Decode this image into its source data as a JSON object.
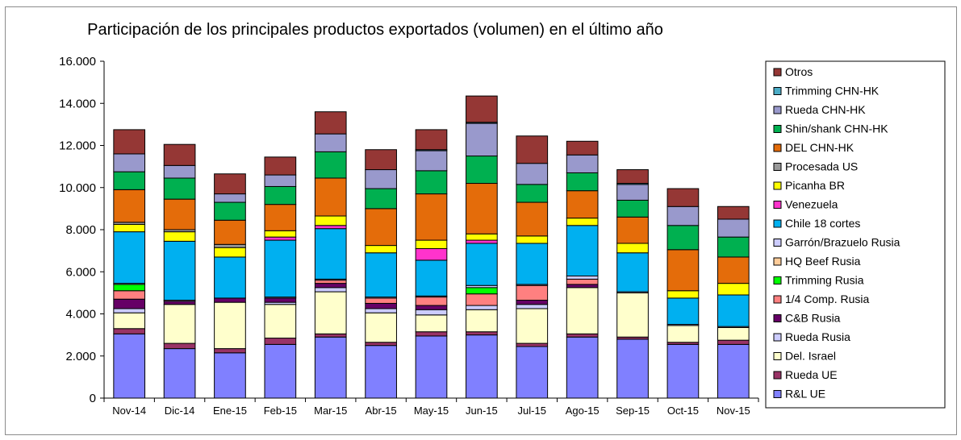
{
  "chart_data": {
    "type": "bar",
    "stacked": true,
    "title": "Participación de los principales productos exportados (volumen) en el último año",
    "xlabel": "",
    "ylabel": "",
    "ylim": [
      0,
      16000
    ],
    "yticks": [
      "0",
      "2.000",
      "4.000",
      "6.000",
      "8.000",
      "10.000",
      "12.000",
      "14.000",
      "16.000"
    ],
    "ytick_values": [
      0,
      2000,
      4000,
      6000,
      8000,
      10000,
      12000,
      14000,
      16000
    ],
    "grid": false,
    "legend_position": "right",
    "categories": [
      "Nov-14",
      "Dic-14",
      "Ene-15",
      "Feb-15",
      "Mar-15",
      "Abr-15",
      "May-15",
      "Jun-15",
      "Jul-15",
      "Ago-15",
      "Sep-15",
      "Oct-15",
      "Nov-15"
    ],
    "series": [
      {
        "name": "R&L UE",
        "color": "#8080ff",
        "values": [
          3050,
          2350,
          2150,
          2550,
          2900,
          2500,
          2950,
          3000,
          2450,
          2900,
          2800,
          2550,
          2550
        ]
      },
      {
        "name": "Rueda UE",
        "color": "#993366",
        "values": [
          250,
          250,
          200,
          300,
          150,
          150,
          200,
          150,
          150,
          150,
          100,
          100,
          200
        ]
      },
      {
        "name": "Del. Israel",
        "color": "#ffffcc",
        "values": [
          750,
          1850,
          2200,
          1600,
          2000,
          1400,
          800,
          1050,
          1650,
          2200,
          2100,
          800,
          600
        ]
      },
      {
        "name": "Rueda Rusia",
        "color": "#ccccff",
        "values": [
          200,
          0,
          0,
          100,
          200,
          200,
          250,
          200,
          200,
          0,
          0,
          0,
          0
        ]
      },
      {
        "name": "C&B Rusia",
        "color": "#660066",
        "values": [
          450,
          150,
          200,
          200,
          200,
          250,
          200,
          0,
          200,
          150,
          0,
          0,
          0
        ]
      },
      {
        "name": "1/4 Comp. Rusia",
        "color": "#ff8080",
        "values": [
          400,
          0,
          0,
          0,
          150,
          250,
          400,
          550,
          700,
          250,
          0,
          0,
          0
        ]
      },
      {
        "name": "Trimming Rusia",
        "color": "#00ff00",
        "values": [
          300,
          0,
          0,
          0,
          0,
          0,
          0,
          300,
          0,
          0,
          0,
          0,
          0
        ]
      },
      {
        "name": "HQ Beef Rusia",
        "color": "#ffcc99",
        "values": [
          0,
          0,
          0,
          0,
          0,
          0,
          0,
          0,
          0,
          0,
          0,
          0,
          0
        ]
      },
      {
        "name": "Garrón/Brazuelo Rusia",
        "color": "#ccccff",
        "values": [
          50,
          50,
          0,
          50,
          50,
          50,
          50,
          100,
          50,
          150,
          50,
          50,
          50
        ]
      },
      {
        "name": "Chile 18 cortes",
        "color": "#00b0f0",
        "values": [
          2450,
          2800,
          1950,
          2700,
          2400,
          2100,
          1700,
          2000,
          1950,
          2400,
          1850,
          1250,
          1500
        ]
      },
      {
        "name": "Venezuela",
        "color": "#ff33cc",
        "values": [
          0,
          0,
          0,
          150,
          150,
          0,
          550,
          150,
          0,
          0,
          0,
          0,
          0
        ]
      },
      {
        "name": "Picanha BR",
        "color": "#ffff00",
        "values": [
          350,
          450,
          450,
          300,
          450,
          350,
          400,
          300,
          350,
          350,
          450,
          350,
          550
        ]
      },
      {
        "name": "Procesada US",
        "color": "#999999",
        "values": [
          100,
          100,
          150,
          0,
          0,
          0,
          0,
          0,
          0,
          0,
          0,
          0,
          0
        ]
      },
      {
        "name": "DEL CHN-HK",
        "color": "#e46c0a",
        "values": [
          1550,
          1450,
          1150,
          1250,
          1800,
          1750,
          2200,
          2400,
          1600,
          1300,
          1250,
          1950,
          1250
        ]
      },
      {
        "name": "Shin/shank CHN-HK",
        "color": "#00b050",
        "values": [
          850,
          1000,
          850,
          850,
          1250,
          950,
          1100,
          1300,
          850,
          850,
          800,
          1150,
          950
        ]
      },
      {
        "name": "Rueda CHN-HK",
        "color": "#9999cc",
        "values": [
          850,
          600,
          400,
          550,
          850,
          900,
          950,
          1550,
          1000,
          850,
          750,
          900,
          850
        ]
      },
      {
        "name": "Trimming CHN-HK",
        "color": "#4bacc6",
        "values": [
          0,
          0,
          0,
          0,
          0,
          0,
          50,
          50,
          0,
          0,
          50,
          0,
          0
        ]
      },
      {
        "name": "Otros",
        "color": "#953735",
        "values": [
          1150,
          1000,
          950,
          850,
          1050,
          950,
          950,
          1250,
          1300,
          650,
          650,
          850,
          600
        ]
      }
    ]
  }
}
